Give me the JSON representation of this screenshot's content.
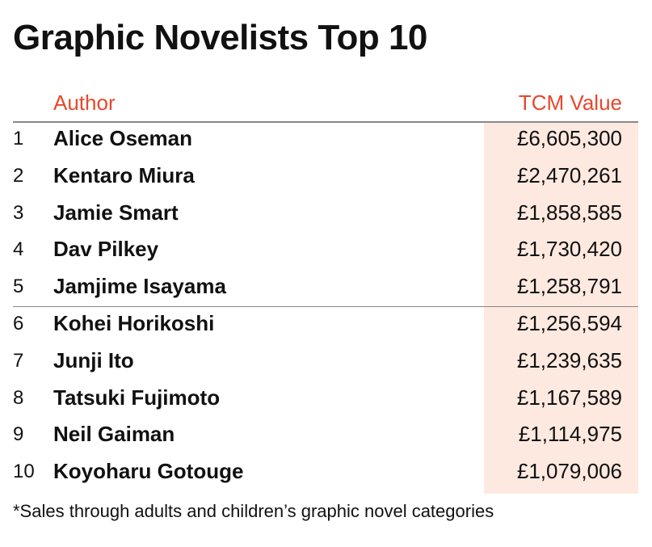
{
  "title": "Graphic Novelists Top 10",
  "headers": {
    "author": "Author",
    "value": "TCM Value"
  },
  "accent_color": "#e8482a",
  "highlight_color": "#fde9e0",
  "footnote": "*Sales through adults and children’s graphic novel categories",
  "chart_data": {
    "type": "table",
    "title": "Graphic Novelists Top 10",
    "columns": [
      "",
      "Author",
      "TCM Value"
    ],
    "rows": [
      {
        "rank": "1",
        "author": "Alice Oseman",
        "value": "£6,605,300"
      },
      {
        "rank": "2",
        "author": "Kentaro Miura",
        "value": "£2,470,261"
      },
      {
        "rank": "3",
        "author": "Jamie Smart",
        "value": "£1,858,585"
      },
      {
        "rank": "4",
        "author": "Dav Pilkey",
        "value": "£1,730,420"
      },
      {
        "rank": "5",
        "author": "Jamjime Isayama",
        "value": "£1,258,791"
      },
      {
        "rank": "6",
        "author": "Kohei Horikoshi",
        "value": "£1,256,594"
      },
      {
        "rank": "7",
        "author": "Junji Ito",
        "value": "£1,239,635"
      },
      {
        "rank": "8",
        "author": "Tatsuki Fujimoto",
        "value": "£1,167,589"
      },
      {
        "rank": "9",
        "author": "Neil Gaiman",
        "value": "£1,114,975"
      },
      {
        "rank": "10",
        "author": "Koyoharu Gotouge",
        "value": "£1,079,006"
      }
    ]
  }
}
